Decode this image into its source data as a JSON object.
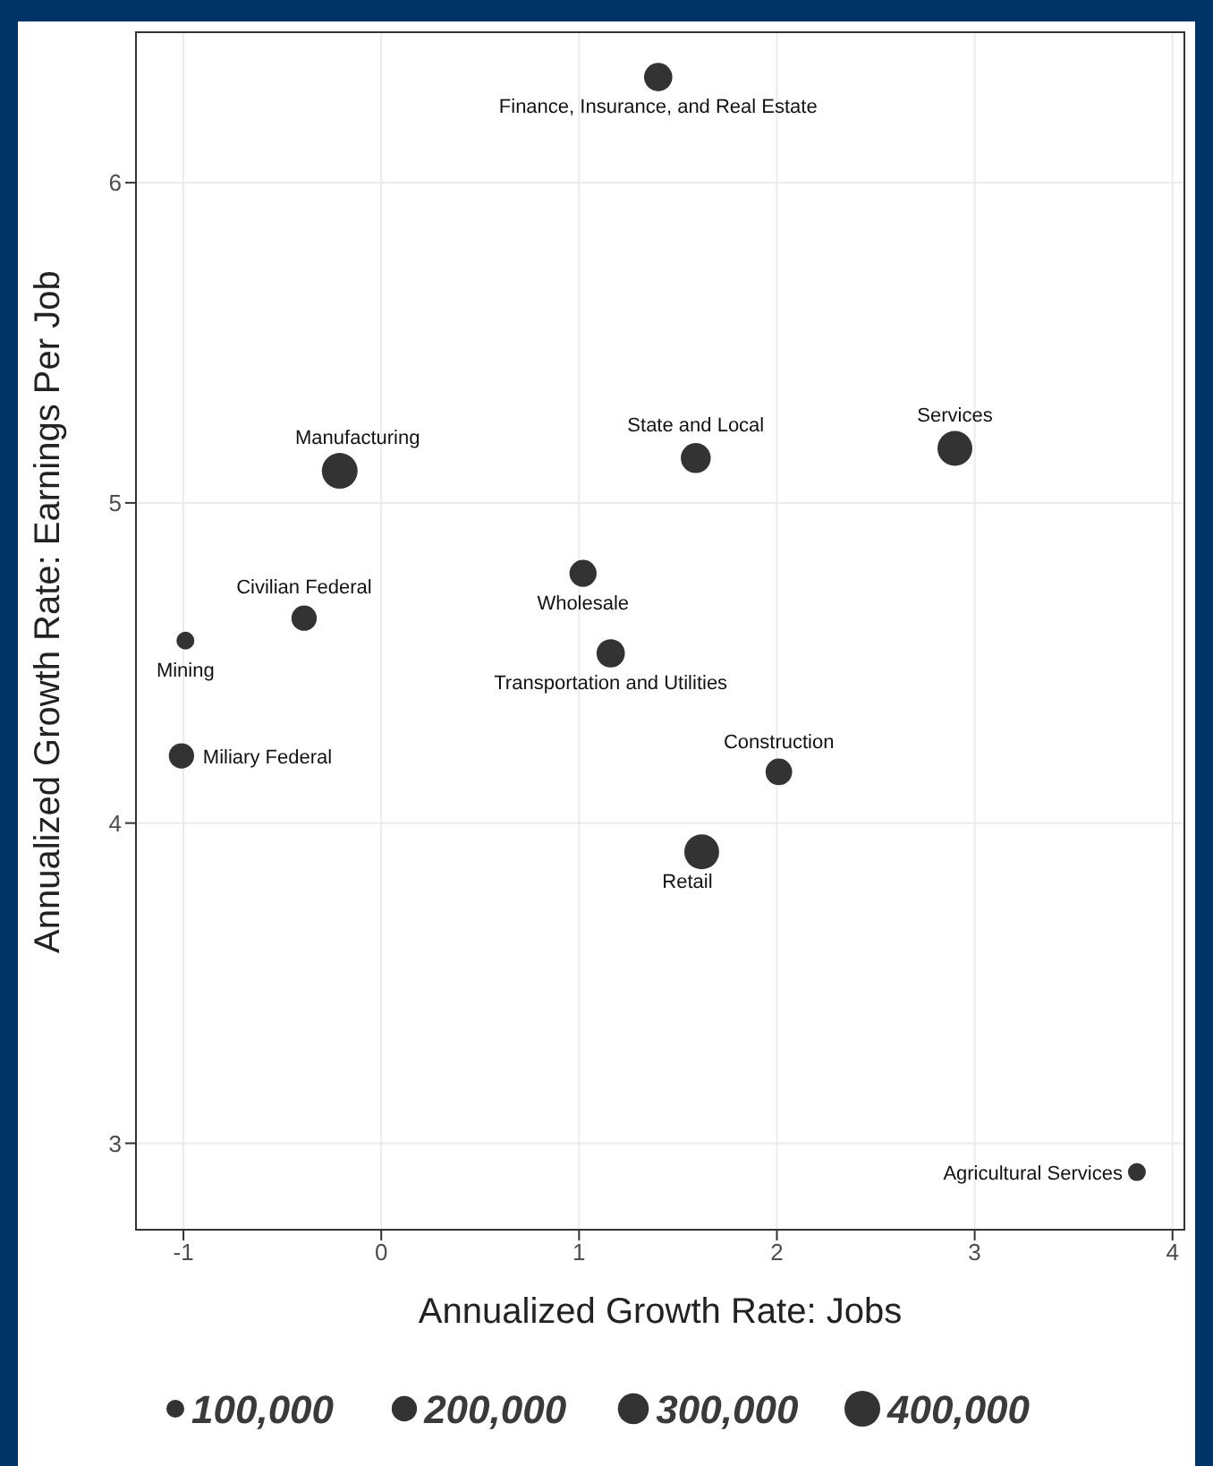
{
  "chart_data": {
    "type": "bubble",
    "xlabel": "Annualized Growth Rate: Jobs",
    "ylabel": "Annualized Growth Rate: Earnings Per Job",
    "x": [
      1.4,
      -0.21,
      1.59,
      2.9,
      -0.39,
      -0.99,
      1.02,
      1.16,
      -1.01,
      2.01,
      1.62,
      3.82
    ],
    "series": [
      {
        "color": "#333333",
        "values": [
          6.33,
          5.1,
          5.14,
          5.17,
          4.64,
          4.57,
          4.78,
          4.53,
          4.21,
          4.16,
          3.91,
          2.91
        ],
        "sizes": [
          250000,
          400000,
          280000,
          380000,
          200000,
          100000,
          230000,
          250000,
          200000,
          220000,
          380000,
          100000
        ]
      }
    ],
    "size_legend": [
      {
        "value": 100000,
        "label": "100,000"
      },
      {
        "value": 200000,
        "label": "200,000"
      },
      {
        "value": 300000,
        "label": "300,000"
      },
      {
        "value": 400000,
        "label": "400,000"
      }
    ],
    "xlim": [
      -1.24,
      4.06
    ],
    "xticks": [
      -1,
      0,
      1,
      2,
      3,
      4
    ],
    "ylim": [
      2.73,
      6.47
    ],
    "yticks": [
      3,
      4,
      5,
      6
    ],
    "grid": true,
    "annotations": [
      {
        "text": "Finance, Insurance, and Real Estate",
        "x": 1.4,
        "y": 6.33
      },
      {
        "text": "Manufacturing",
        "x": -0.21,
        "y": 5.1
      },
      {
        "text": "State and Local",
        "x": 1.59,
        "y": 5.14
      },
      {
        "text": "Services",
        "x": 2.9,
        "y": 5.17
      },
      {
        "text": "Civilian Federal",
        "x": -0.39,
        "y": 4.64
      },
      {
        "text": "Mining",
        "x": -0.99,
        "y": 4.57
      },
      {
        "text": "Wholesale",
        "x": 1.02,
        "y": 4.78
      },
      {
        "text": "Transportation and Utilities",
        "x": 1.16,
        "y": 4.53
      },
      {
        "text": "Miliary Federal",
        "x": -1.01,
        "y": 4.21
      },
      {
        "text": "Construction",
        "x": 2.01,
        "y": 4.16
      },
      {
        "text": "Retail",
        "x": 1.62,
        "y": 3.91
      },
      {
        "text": "Agricultural Services",
        "x": 3.82,
        "y": 2.91
      }
    ]
  }
}
